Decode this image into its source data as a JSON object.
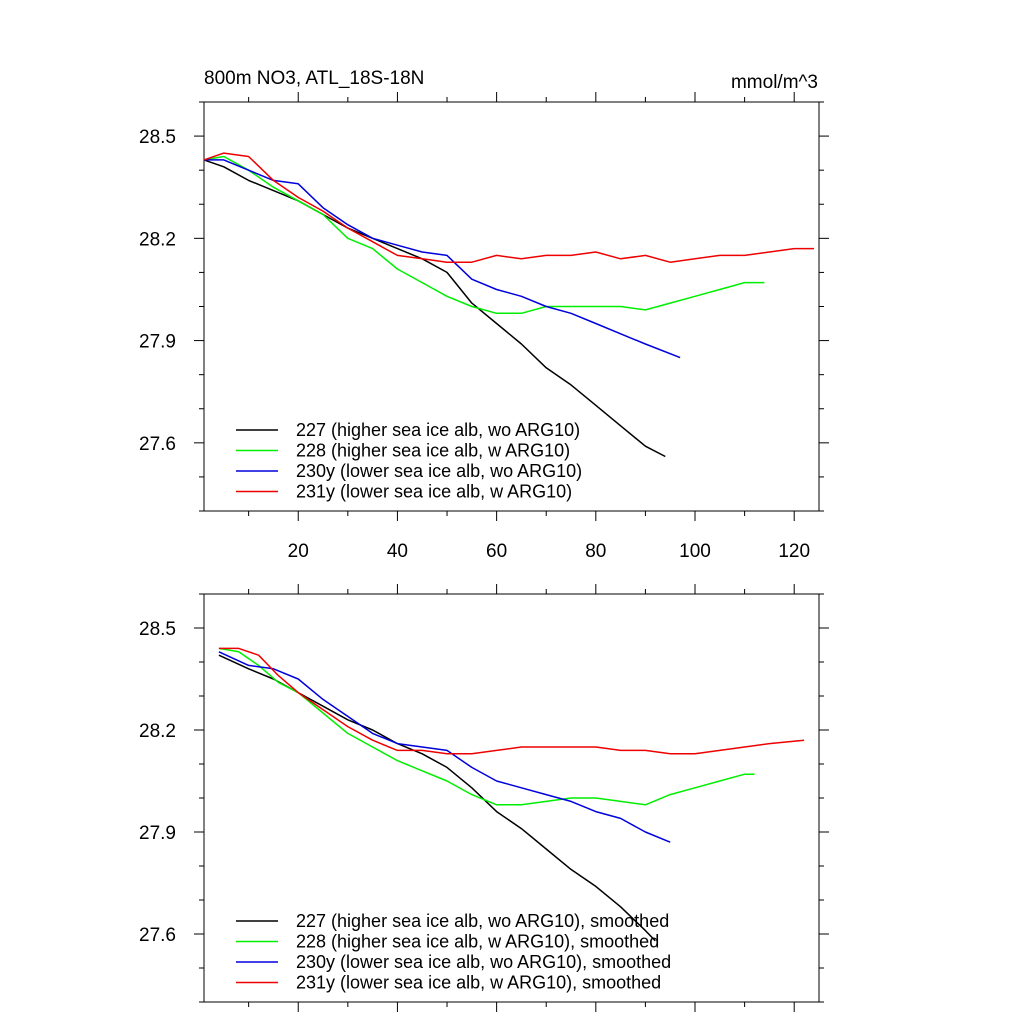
{
  "chart_data": [
    {
      "type": "line",
      "title": "800m NO3, ATL_18S-18N",
      "units_label": "mmol/m^3",
      "xlim": [
        1,
        125
      ],
      "ylim": [
        27.4,
        28.6
      ],
      "xticks": [
        20,
        40,
        60,
        80,
        100,
        120
      ],
      "xtick_labels": [
        "20",
        "40",
        "60",
        "80",
        "100",
        "120"
      ],
      "yticks": [
        27.6,
        27.9,
        28.2,
        28.5
      ],
      "ytick_labels": [
        "27.6",
        "27.9",
        "28.2",
        "28.5"
      ],
      "grid": false,
      "legend_position": "bottom-left",
      "series": [
        {
          "name": "227 (higher sea ice alb, wo ARG10)",
          "color": "#000000",
          "x": [
            1,
            5,
            10,
            15,
            20,
            25,
            30,
            35,
            40,
            45,
            50,
            55,
            60,
            65,
            70,
            75,
            80,
            85,
            90,
            94
          ],
          "y": [
            28.43,
            28.41,
            28.37,
            28.34,
            28.31,
            28.27,
            28.23,
            28.2,
            28.17,
            28.14,
            28.1,
            28.01,
            27.95,
            27.89,
            27.82,
            27.77,
            27.71,
            27.65,
            27.59,
            27.56
          ]
        },
        {
          "name": "228 (higher sea ice alb, w ARG10)",
          "color": "#00ee00",
          "x": [
            1,
            5,
            10,
            15,
            20,
            25,
            30,
            35,
            40,
            45,
            50,
            55,
            60,
            65,
            70,
            75,
            80,
            85,
            90,
            95,
            100,
            105,
            110,
            114
          ],
          "y": [
            28.43,
            28.44,
            28.4,
            28.35,
            28.31,
            28.27,
            28.2,
            28.17,
            28.11,
            28.07,
            28.03,
            28.0,
            27.98,
            27.98,
            28.0,
            28.0,
            28.0,
            28.0,
            27.99,
            28.01,
            28.03,
            28.05,
            28.07,
            28.07
          ]
        },
        {
          "name": "230y (lower sea ice alb, wo ARG10)",
          "color": "#0000dd",
          "x": [
            1,
            5,
            10,
            15,
            20,
            25,
            30,
            35,
            40,
            45,
            50,
            55,
            60,
            65,
            70,
            75,
            80,
            85,
            90,
            97
          ],
          "y": [
            28.43,
            28.43,
            28.4,
            28.37,
            28.36,
            28.29,
            28.24,
            28.2,
            28.18,
            28.16,
            28.15,
            28.08,
            28.05,
            28.03,
            28.0,
            27.98,
            27.95,
            27.92,
            27.89,
            27.85
          ]
        },
        {
          "name": "231y (lower sea ice alb, w ARG10)",
          "color": "#ee0000",
          "x": [
            1,
            5,
            10,
            15,
            20,
            25,
            30,
            35,
            40,
            45,
            50,
            55,
            60,
            65,
            70,
            75,
            80,
            85,
            90,
            95,
            100,
            105,
            110,
            115,
            120,
            124
          ],
          "y": [
            28.43,
            28.45,
            28.44,
            28.37,
            28.32,
            28.28,
            28.23,
            28.19,
            28.15,
            28.14,
            28.13,
            28.13,
            28.15,
            28.14,
            28.15,
            28.15,
            28.16,
            28.14,
            28.15,
            28.13,
            28.14,
            28.15,
            28.15,
            28.16,
            28.17,
            28.17
          ]
        }
      ]
    },
    {
      "type": "line",
      "xlim": [
        1,
        125
      ],
      "ylim": [
        27.4,
        28.6
      ],
      "xticks": [
        20,
        40,
        60,
        80,
        100,
        120
      ],
      "yticks": [
        27.6,
        27.9,
        28.2,
        28.5
      ],
      "ytick_labels": [
        "27.6",
        "27.9",
        "28.2",
        "28.5"
      ],
      "grid": false,
      "legend_position": "bottom-left",
      "series": [
        {
          "name": "227 (higher sea ice alb, wo ARG10), smoothed",
          "color": "#000000",
          "x": [
            4,
            10,
            15,
            20,
            25,
            30,
            35,
            40,
            45,
            50,
            55,
            60,
            65,
            70,
            75,
            80,
            85,
            90,
            92
          ],
          "y": [
            28.42,
            28.38,
            28.35,
            28.31,
            28.27,
            28.23,
            28.2,
            28.16,
            28.13,
            28.09,
            28.03,
            27.96,
            27.91,
            27.85,
            27.79,
            27.74,
            27.68,
            27.61,
            27.58
          ]
        },
        {
          "name": "228 (higher sea ice alb, w ARG10), smoothed",
          "color": "#00ee00",
          "x": [
            4,
            8,
            12,
            16,
            20,
            25,
            30,
            35,
            40,
            45,
            50,
            55,
            60,
            65,
            70,
            75,
            80,
            85,
            90,
            95,
            100,
            105,
            110,
            112
          ],
          "y": [
            28.44,
            28.43,
            28.39,
            28.34,
            28.31,
            28.25,
            28.19,
            28.15,
            28.11,
            28.08,
            28.05,
            28.01,
            27.98,
            27.98,
            27.99,
            28.0,
            28.0,
            27.99,
            27.98,
            28.01,
            28.03,
            28.05,
            28.07,
            28.07
          ]
        },
        {
          "name": "230y (lower sea ice alb, wo ARG10), smoothed",
          "color": "#0000dd",
          "x": [
            4,
            10,
            15,
            20,
            25,
            30,
            35,
            40,
            45,
            50,
            55,
            60,
            65,
            70,
            75,
            80,
            85,
            90,
            95
          ],
          "y": [
            28.43,
            28.39,
            28.38,
            28.35,
            28.29,
            28.24,
            28.19,
            28.16,
            28.15,
            28.14,
            28.09,
            28.05,
            28.03,
            28.01,
            27.99,
            27.96,
            27.94,
            27.9,
            27.87
          ]
        },
        {
          "name": "231y (lower sea ice alb, w ARG10), smoothed",
          "color": "#ee0000",
          "x": [
            4,
            8,
            12,
            16,
            20,
            25,
            30,
            35,
            40,
            45,
            50,
            55,
            60,
            65,
            70,
            75,
            80,
            85,
            90,
            95,
            100,
            105,
            110,
            115,
            122
          ],
          "y": [
            28.44,
            28.44,
            28.42,
            28.36,
            28.31,
            28.26,
            28.21,
            28.17,
            28.14,
            28.14,
            28.13,
            28.13,
            28.14,
            28.15,
            28.15,
            28.15,
            28.15,
            28.14,
            28.14,
            28.13,
            28.13,
            28.14,
            28.15,
            28.16,
            28.17
          ]
        }
      ]
    }
  ]
}
